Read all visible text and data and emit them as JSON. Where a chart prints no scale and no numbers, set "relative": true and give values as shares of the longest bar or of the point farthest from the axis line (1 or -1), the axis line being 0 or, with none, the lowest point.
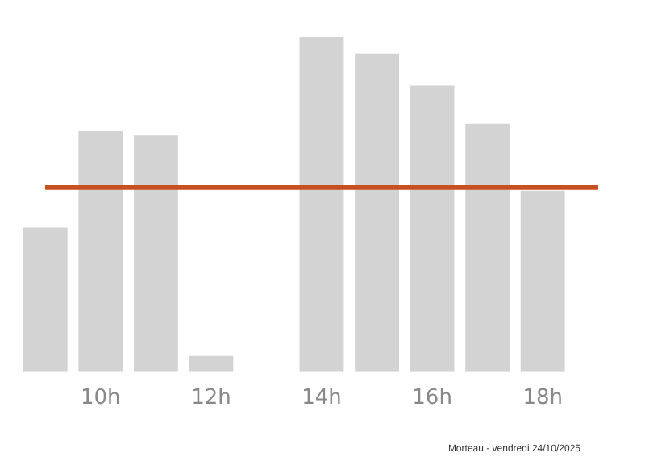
{
  "chart_data": {
    "type": "bar",
    "relative": true,
    "categories": [
      null,
      "10h",
      null,
      "12h",
      null,
      "14h",
      null,
      "16h",
      null,
      "18h",
      null
    ],
    "values": [
      0.43,
      0.72,
      0.705,
      0.046,
      null,
      1,
      0.95,
      0.854,
      0.74,
      0.54,
      null
    ],
    "color": "#d3d3d3",
    "ref_lines": [
      {
        "axis": "y",
        "value": 0.55,
        "color": "#c8501e"
      }
    ],
    "grid": false,
    "legend": false,
    "annotations": [
      "Morteau - vendredi 24/10/2025"
    ]
  }
}
